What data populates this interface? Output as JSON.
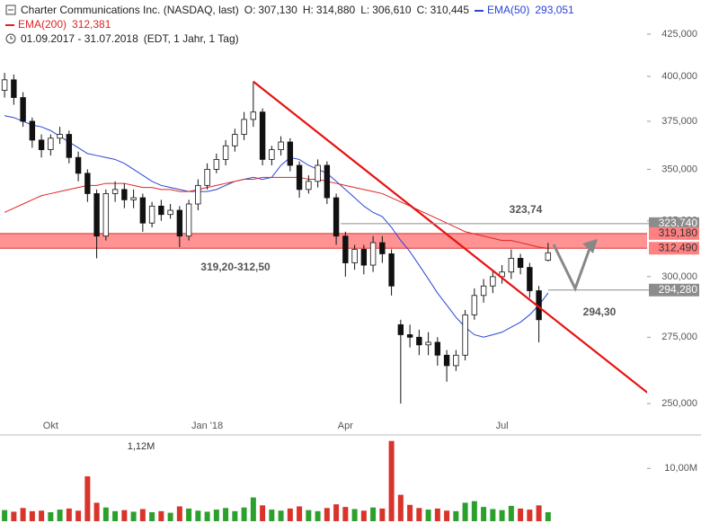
{
  "header": {
    "title": "Charter Communications Inc. (NASDAQ, last)",
    "ohlc": [
      {
        "label": "O:",
        "value": "307,130"
      },
      {
        "label": "H:",
        "value": "314,880"
      },
      {
        "label": "L:",
        "value": "306,610"
      },
      {
        "label": "C:",
        "value": "310,445"
      }
    ],
    "period": "01.09.2017 - 31.07.2018",
    "details": "(EDT, 1 Jahr, 1 Tag)"
  },
  "chart_data": {
    "type": "candlestick",
    "log_scale": true,
    "categories": [
      null,
      null,
      null,
      null,
      null,
      "Okt",
      null,
      null,
      null,
      null,
      null,
      null,
      null,
      null,
      null,
      null,
      null,
      null,
      null,
      null,
      null,
      null,
      "Jan '18",
      null,
      null,
      null,
      null,
      null,
      null,
      null,
      null,
      null,
      null,
      null,
      null,
      null,
      null,
      "Apr",
      null,
      null,
      null,
      null,
      null,
      null,
      null,
      null,
      null,
      null,
      null,
      null,
      null,
      null,
      null,
      null,
      "Jul",
      null,
      null,
      null,
      null,
      null
    ],
    "open": [
      392,
      398,
      388,
      375,
      365,
      360,
      366,
      368,
      356,
      348,
      338,
      318,
      338,
      340,
      335,
      336,
      324,
      332,
      328,
      330,
      318,
      333,
      342,
      350,
      355,
      362,
      368,
      376,
      380,
      355,
      360,
      364,
      352,
      340,
      344,
      352,
      336,
      318,
      306,
      312,
      305,
      315,
      310,
      280,
      276,
      275,
      272,
      273,
      268,
      264,
      268,
      284,
      292,
      296,
      300,
      302,
      308,
      304,
      294,
      307.13
    ],
    "high": [
      402,
      401,
      391,
      377,
      368,
      368,
      372,
      370,
      359,
      350,
      340,
      340,
      344,
      343,
      340,
      338,
      334,
      335,
      333,
      332,
      335,
      345,
      353,
      358,
      365,
      371,
      380,
      397,
      382,
      362,
      367,
      366,
      354,
      347,
      355,
      354,
      338,
      320,
      314,
      314,
      318,
      318,
      312,
      282,
      280,
      278,
      277,
      275,
      270,
      270,
      286,
      295,
      299,
      303,
      305,
      312,
      310,
      306,
      296,
      314.88
    ],
    "low": [
      388,
      384,
      372,
      361,
      356,
      357,
      363,
      353,
      344,
      334,
      308,
      316,
      334,
      331,
      331,
      320,
      322,
      325,
      326,
      313,
      316,
      330,
      340,
      348,
      352,
      359,
      365,
      372,
      352,
      352,
      357,
      349,
      336,
      338,
      341,
      333,
      314,
      300,
      303,
      301,
      302,
      306,
      292,
      250,
      271,
      268,
      268,
      264,
      258,
      262,
      266,
      282,
      289,
      293,
      297,
      299,
      301,
      291,
      273,
      306.61
    ],
    "close": [
      398,
      388,
      375,
      365,
      360,
      366,
      368,
      356,
      348,
      338,
      318,
      338,
      340,
      335,
      336,
      324,
      332,
      328,
      330,
      318,
      333,
      342,
      350,
      355,
      362,
      368,
      376,
      380,
      355,
      360,
      364,
      352,
      340,
      344,
      352,
      336,
      318,
      306,
      312,
      305,
      315,
      310,
      296,
      276,
      275,
      272,
      273,
      268,
      264,
      268,
      284,
      292,
      296,
      300,
      302,
      308,
      304,
      294,
      282,
      310.445
    ],
    "up_color": "#ffffff",
    "down_color": "#111111",
    "series": [
      {
        "name": "EMA(50)",
        "legend_value": "293,051",
        "color": "#2b45d6",
        "values": [
          378,
          377,
          375,
          373,
          372,
          370,
          367,
          364,
          361,
          358,
          357,
          356,
          355,
          353,
          350,
          347,
          344,
          342,
          341,
          340,
          339,
          339,
          339,
          340,
          342,
          344,
          345,
          346,
          345,
          346,
          352,
          356,
          355,
          352,
          350,
          348,
          344,
          340,
          336,
          332,
          329,
          327,
          322,
          316,
          311,
          305,
          299,
          293,
          288,
          283,
          279,
          276,
          275,
          276,
          277,
          279,
          281,
          284,
          288,
          293.051
        ]
      },
      {
        "name": "EMA(200)",
        "legend_value": "312,381",
        "color": "#e02424",
        "values": [
          329,
          331,
          333,
          335,
          337,
          338,
          339,
          340,
          341,
          342,
          342,
          343,
          343,
          343,
          342,
          341,
          341,
          340,
          340,
          339,
          339,
          340,
          341,
          342,
          343,
          344,
          345,
          345,
          346,
          346,
          346,
          346,
          346,
          345,
          345,
          344,
          343,
          342,
          341,
          340,
          339,
          338,
          336,
          334,
          332,
          330,
          328,
          326,
          324,
          322,
          320,
          319,
          318,
          317,
          316,
          316,
          315,
          314,
          313,
          312.381
        ]
      }
    ],
    "ylim": [
      239,
      430.5
    ],
    "yticks": [
      {
        "value": 250,
        "label": "250,000"
      },
      {
        "value": 275,
        "label": "275,000"
      },
      {
        "value": 300,
        "label": "300,000"
      },
      {
        "value": 325,
        "label": "325,000"
      },
      {
        "value": 350,
        "label": "350,000"
      },
      {
        "value": 375,
        "label": "375,000"
      },
      {
        "value": 400,
        "label": "400,000"
      },
      {
        "value": 425,
        "label": "425,000"
      }
    ],
    "band": {
      "low": 312.49,
      "high": 319.18,
      "low_label": "312,490",
      "high_label": "319,180",
      "color": "#ff8080"
    },
    "levels": [
      {
        "value": 323.74,
        "label": "323,740",
        "from": 36.5
      },
      {
        "value": 294.28,
        "label": "294,280",
        "from": 59
      }
    ],
    "level_color": "#8c8c8c",
    "trendline": {
      "x": [
        27,
        76
      ],
      "values": [
        397,
        238
      ],
      "color": "#e81212"
    },
    "annotations": [
      "323,74",
      "319,20-312,50",
      "294,30"
    ],
    "volume": {
      "values": [
        2.1,
        1.8,
        2.5,
        1.9,
        2.0,
        1.7,
        2.2,
        2.4,
        2.0,
        8.5,
        3.5,
        2.6,
        1.9,
        2.1,
        1.8,
        2.3,
        1.7,
        1.9,
        1.6,
        2.8,
        2.4,
        2.0,
        1.8,
        2.2,
        2.5,
        1.9,
        2.6,
        4.5,
        3.0,
        2.2,
        2.0,
        2.4,
        2.8,
        2.1,
        1.9,
        2.5,
        3.2,
        2.7,
        2.3,
        2.0,
        2.6,
        2.4,
        15.2,
        5.0,
        3.1,
        2.5,
        2.2,
        2.4,
        2.0,
        1.9,
        3.5,
        3.8,
        2.7,
        2.3,
        2.1,
        2.9,
        2.4,
        2.2,
        3.0,
        1.7
      ],
      "up_color": "#2ca02c",
      "down_color": "#d9342b",
      "ylim": [
        0,
        16
      ],
      "yticks": [
        {
          "value": 10,
          "label": "10,00M"
        }
      ],
      "annotation": "1,12M"
    }
  }
}
